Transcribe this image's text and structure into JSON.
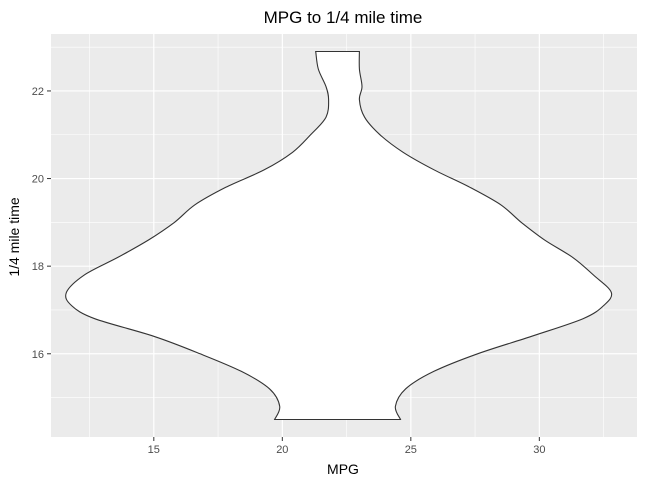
{
  "chart_data": {
    "type": "violin",
    "title": "MPG to 1/4 mile time",
    "xlabel": "MPG",
    "ylabel": "1/4 mile time",
    "xlim": [
      11.0,
      33.8
    ],
    "ylim": [
      14.1,
      23.3
    ],
    "x_ticks": [
      15,
      20,
      25,
      30
    ],
    "y_ticks": [
      16,
      18,
      20,
      22
    ],
    "center_x": 22.4,
    "y_range": [
      14.5,
      22.9
    ],
    "outline": [
      {
        "y": 14.5,
        "left": 19.7,
        "right": 24.6
      },
      {
        "y": 14.8,
        "left": 19.9,
        "right": 24.4
      },
      {
        "y": 15.2,
        "left": 19.5,
        "right": 24.8
      },
      {
        "y": 15.6,
        "left": 18.4,
        "right": 25.9
      },
      {
        "y": 16.0,
        "left": 16.8,
        "right": 27.6
      },
      {
        "y": 16.4,
        "left": 15.0,
        "right": 29.7
      },
      {
        "y": 16.8,
        "left": 12.7,
        "right": 31.7
      },
      {
        "y": 17.1,
        "left": 11.8,
        "right": 32.5
      },
      {
        "y": 17.4,
        "left": 11.6,
        "right": 32.8
      },
      {
        "y": 17.8,
        "left": 12.3,
        "right": 32.1
      },
      {
        "y": 18.2,
        "left": 13.6,
        "right": 31.3
      },
      {
        "y": 18.6,
        "left": 14.8,
        "right": 30.2
      },
      {
        "y": 19.0,
        "left": 15.8,
        "right": 29.3
      },
      {
        "y": 19.4,
        "left": 16.6,
        "right": 28.5
      },
      {
        "y": 19.8,
        "left": 17.8,
        "right": 27.3
      },
      {
        "y": 20.2,
        "left": 19.3,
        "right": 25.9
      },
      {
        "y": 20.6,
        "left": 20.4,
        "right": 24.7
      },
      {
        "y": 21.0,
        "left": 21.1,
        "right": 23.8
      },
      {
        "y": 21.4,
        "left": 21.7,
        "right": 23.2
      },
      {
        "y": 21.8,
        "left": 21.8,
        "right": 23.0
      },
      {
        "y": 22.1,
        "left": 21.7,
        "right": 23.1
      },
      {
        "y": 22.5,
        "left": 21.4,
        "right": 23.0
      },
      {
        "y": 22.9,
        "left": 21.3,
        "right": 23.0
      }
    ],
    "grid": true,
    "panel_color": "#ebebeb",
    "grid_color": "#ffffff",
    "fill_color": "#ffffff",
    "line_color": "#333333"
  }
}
